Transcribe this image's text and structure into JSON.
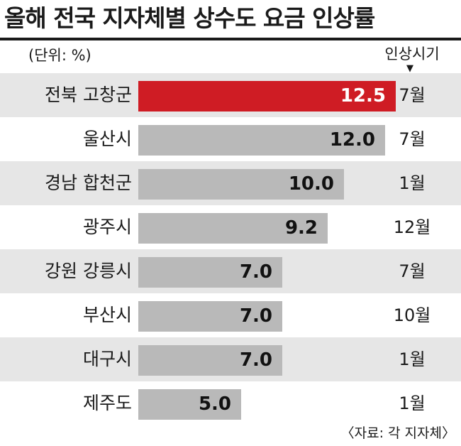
{
  "title": "올해 전국 지자체별 상수도 요금 인상률",
  "unit_label": "(단위: %)",
  "timing_header": "인상시기",
  "timing_arrow": "▼",
  "source": "〈자료: 각 지자체〉",
  "colors": {
    "highlight_bar": "#cf1c24",
    "bar": "#b9b9b9",
    "row_band": "#e6e6e6"
  },
  "chart_data": {
    "type": "bar",
    "orientation": "horizontal",
    "title": "올해 전국 지자체별 상수도 요금 인상률",
    "unit": "%",
    "categories": [
      "전북 고창군",
      "울산시",
      "경남 합천군",
      "광주시",
      "강원 강릉시",
      "부산시",
      "대구시",
      "제주도"
    ],
    "values": [
      12.5,
      12.0,
      10.0,
      9.2,
      7.0,
      7.0,
      7.0,
      5.0
    ],
    "value_labels": [
      "12.5",
      "12.0",
      "10.0",
      "9.2",
      "7.0",
      "7.0",
      "7.0",
      "5.0"
    ],
    "timing": [
      "7월",
      "7월",
      "1월",
      "12월",
      "7월",
      "10월",
      "1월",
      "1월"
    ],
    "highlight_index": 0,
    "xlim": [
      0,
      15
    ],
    "grid": false,
    "legend": "none"
  }
}
